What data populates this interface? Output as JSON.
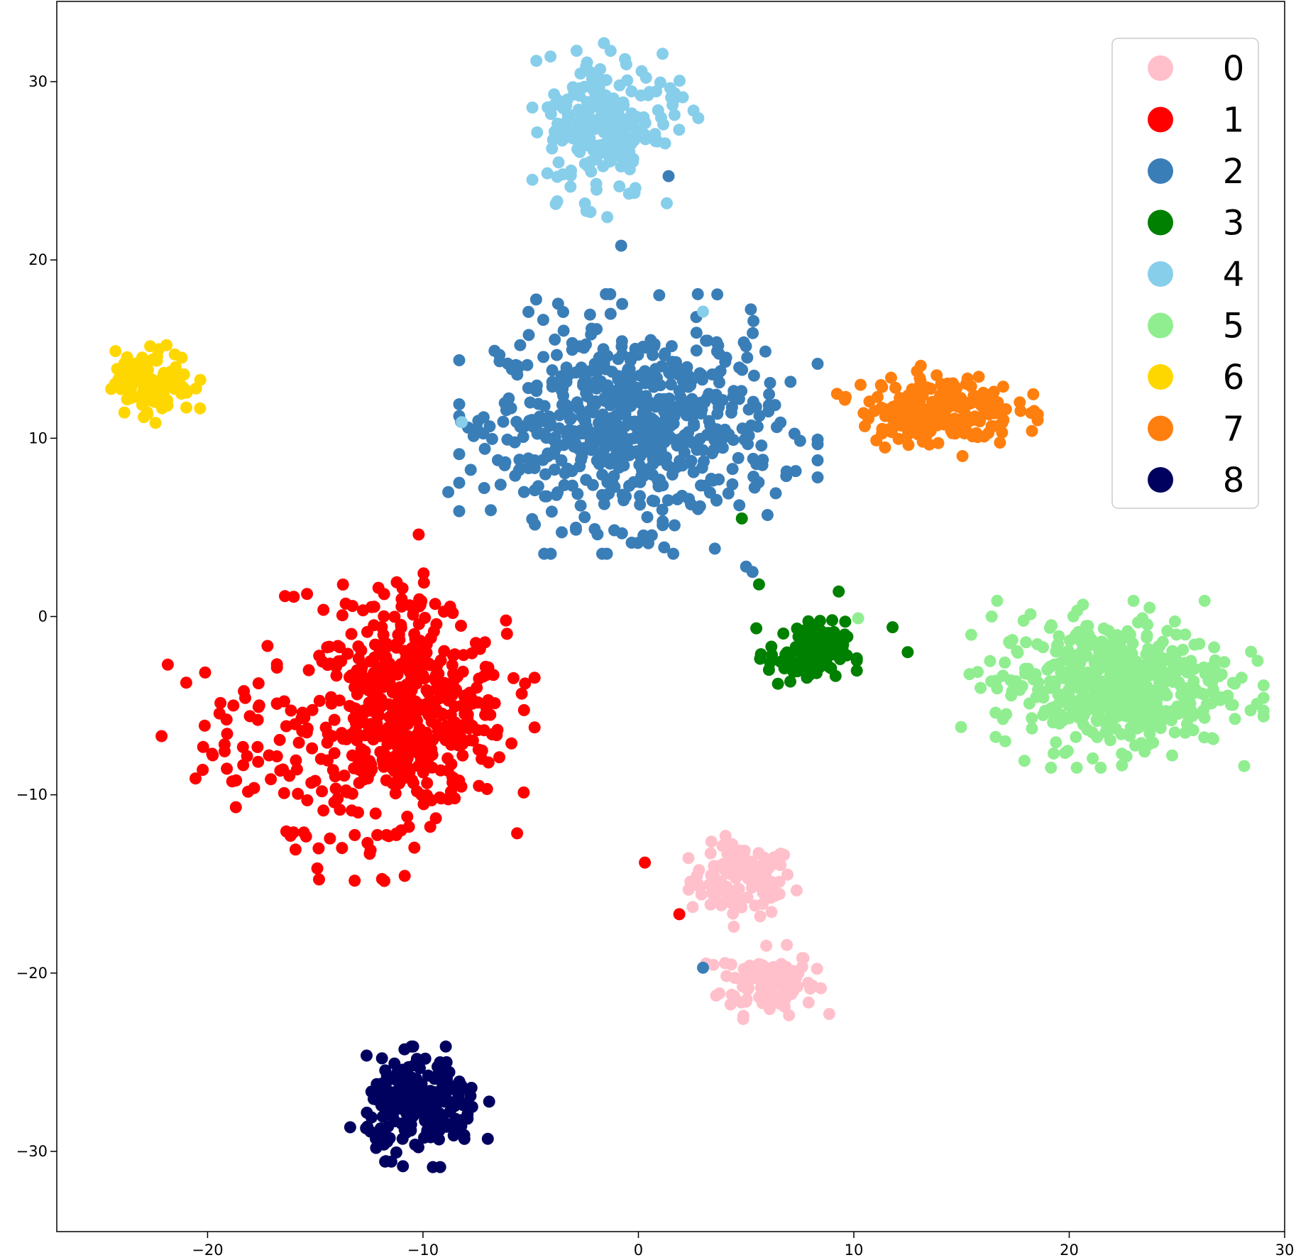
{
  "chart_data": {
    "type": "scatter",
    "title": "",
    "xlabel": "",
    "ylabel": "",
    "xlim": [
      -27,
      30
    ],
    "ylim": [
      -34.5,
      34.5
    ],
    "x_ticks": [
      -20,
      -10,
      0,
      10,
      20,
      30
    ],
    "y_ticks": [
      -30,
      -20,
      -10,
      0,
      10,
      20,
      30
    ],
    "x_tick_labels": [
      "−20",
      "−10",
      "0",
      "10",
      "20",
      "30"
    ],
    "y_tick_labels": [
      "−30",
      "−20",
      "−10",
      "0",
      "10",
      "20",
      "30"
    ],
    "grid": false,
    "legend_position": "top-right",
    "series": [
      {
        "name": "0",
        "color": "#FFC0CB",
        "clusters": [
          {
            "cx": 4.8,
            "cy": -14.8,
            "sx": 1.2,
            "sy": 1.0,
            "n": 110
          },
          {
            "cx": 6.0,
            "cy": -20.5,
            "sx": 1.1,
            "sy": 0.9,
            "n": 110
          }
        ]
      },
      {
        "name": "1",
        "color": "#FF0000",
        "clusters": [
          {
            "cx": -10.8,
            "cy": -5.5,
            "sx": 2.3,
            "sy": 2.6,
            "n": 520
          },
          {
            "cx": -18.5,
            "cy": -7.5,
            "sx": 2.0,
            "sy": 2.5,
            "n": 55
          },
          {
            "cx": -13.0,
            "cy": -13.0,
            "sx": 1.5,
            "sy": 1.2,
            "n": 20
          },
          {
            "cx": -12.5,
            "cy": 0.8,
            "sx": 1.8,
            "sy": 0.8,
            "n": 25
          }
        ]
      },
      {
        "name": "2",
        "color": "#3A7EB8",
        "clusters": [
          {
            "cx": 0.0,
            "cy": 10.8,
            "sx": 3.2,
            "sy": 2.8,
            "n": 600
          },
          {
            "cx": -5.0,
            "cy": 10.5,
            "sx": 1.5,
            "sy": 2.3,
            "n": 45
          }
        ]
      },
      {
        "name": "3",
        "color": "#008000",
        "clusters": [
          {
            "cx": 7.8,
            "cy": -2.1,
            "sx": 0.9,
            "sy": 0.9,
            "n": 110
          }
        ]
      },
      {
        "name": "4",
        "color": "#87CEEB",
        "clusters": [
          {
            "cx": -1.8,
            "cy": 27.5,
            "sx": 1.2,
            "sy": 2.0,
            "n": 200
          },
          {
            "cx": 1.0,
            "cy": 29.0,
            "sx": 1.0,
            "sy": 1.5,
            "n": 30
          }
        ]
      },
      {
        "name": "5",
        "color": "#90EE90",
        "clusters": [
          {
            "cx": 22.0,
            "cy": -3.8,
            "sx": 2.7,
            "sy": 1.8,
            "n": 520
          }
        ]
      },
      {
        "name": "6",
        "color": "#FFD700",
        "clusters": [
          {
            "cx": -22.5,
            "cy": 13.2,
            "sx": 0.9,
            "sy": 0.9,
            "n": 110
          }
        ]
      },
      {
        "name": "7",
        "color": "#FF7F0E",
        "clusters": [
          {
            "cx": 13.9,
            "cy": 11.6,
            "sx": 1.8,
            "sy": 1.0,
            "n": 200
          }
        ]
      },
      {
        "name": "8",
        "color": "#00005F",
        "clusters": [
          {
            "cx": -10.0,
            "cy": -27.5,
            "sx": 1.3,
            "sy": 1.3,
            "n": 220
          }
        ]
      }
    ],
    "outliers": [
      {
        "series": "1",
        "points": [
          [
            0.3,
            -13.8
          ],
          [
            1.9,
            -16.7
          ],
          [
            -10.2,
            4.6
          ]
        ]
      },
      {
        "series": "2",
        "points": [
          [
            3.0,
            -19.7
          ],
          [
            1.4,
            24.7
          ],
          [
            -0.8,
            20.8
          ],
          [
            5.0,
            2.8
          ],
          [
            5.3,
            2.5
          ]
        ]
      },
      {
        "series": "3",
        "points": [
          [
            4.8,
            5.5
          ],
          [
            5.6,
            1.8
          ],
          [
            11.8,
            -0.6
          ],
          [
            12.5,
            -2.0
          ],
          [
            9.3,
            1.4
          ]
        ]
      },
      {
        "series": "4",
        "points": [
          [
            3.0,
            17.1
          ],
          [
            -8.2,
            10.9
          ]
        ]
      },
      {
        "series": "5",
        "points": [
          [
            10.2,
            -0.1
          ]
        ]
      }
    ]
  }
}
